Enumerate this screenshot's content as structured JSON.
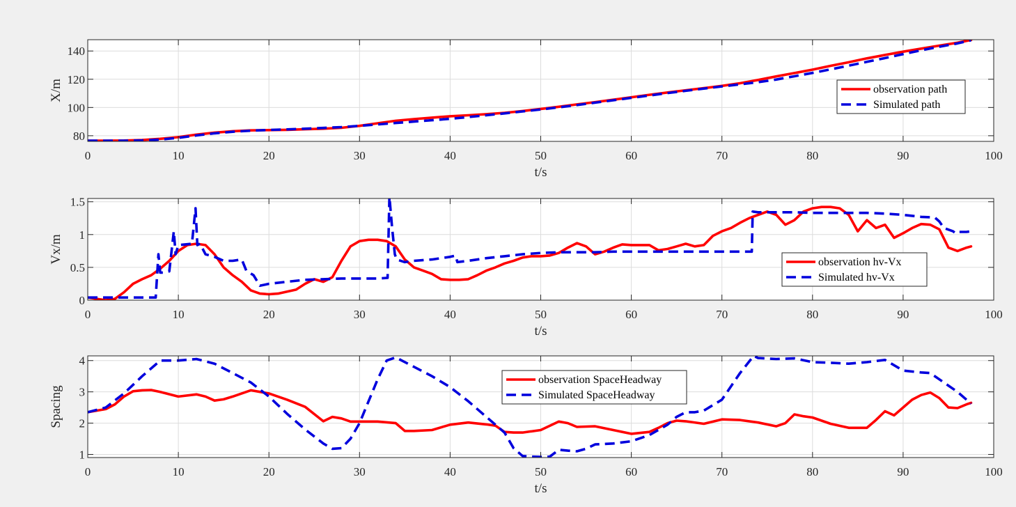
{
  "chart_data": [
    {
      "type": "line",
      "xlabel": "t/s",
      "ylabel": "X/m",
      "xlim": [
        0,
        100
      ],
      "ylim": [
        76,
        148
      ],
      "xticks": [
        0,
        10,
        20,
        30,
        40,
        50,
        60,
        70,
        80,
        90,
        100
      ],
      "yticks": [
        80,
        100,
        120,
        140
      ],
      "grid": true,
      "legend_position": "right",
      "series": [
        {
          "name": "observation path",
          "color": "#ff0000",
          "style": "solid",
          "x": [
            0,
            2,
            4,
            6,
            8,
            10,
            12,
            14,
            16,
            18,
            20,
            22,
            24,
            26,
            28,
            30,
            32,
            34,
            36,
            38,
            40,
            42,
            44,
            46,
            48,
            50,
            52,
            54,
            56,
            58,
            60,
            62,
            64,
            66,
            68,
            70,
            72,
            74,
            76,
            78,
            80,
            82,
            84,
            86,
            88,
            90,
            92,
            94,
            96,
            97.5
          ],
          "y": [
            76.5,
            76.5,
            76.6,
            77.0,
            77.8,
            79.0,
            80.8,
            82.2,
            83.2,
            83.8,
            84.0,
            84.2,
            84.6,
            85.0,
            85.6,
            87.0,
            88.8,
            90.6,
            91.8,
            92.8,
            93.8,
            94.5,
            95.3,
            96.2,
            97.5,
            99.0,
            100.5,
            102.2,
            103.8,
            105.5,
            107.2,
            109.0,
            110.6,
            112.2,
            113.7,
            115.3,
            117.2,
            119.5,
            122.0,
            124.4,
            126.8,
            129.5,
            132.0,
            134.8,
            137.2,
            139.5,
            141.7,
            143.8,
            145.9,
            147.8
          ]
        },
        {
          "name": "Simulated path",
          "color": "#0000dd",
          "style": "dashed",
          "x": [
            0,
            2,
            4,
            6,
            8,
            10,
            12,
            14,
            16,
            18,
            20,
            22,
            24,
            26,
            28,
            30,
            32,
            34,
            36,
            38,
            40,
            42,
            44,
            46,
            48,
            50,
            52,
            54,
            56,
            58,
            60,
            62,
            64,
            66,
            68,
            70,
            72,
            74,
            76,
            78,
            80,
            82,
            84,
            86,
            88,
            90,
            92,
            94,
            96,
            97.5
          ],
          "y": [
            76.5,
            76.5,
            76.5,
            76.7,
            77.3,
            78.5,
            80.2,
            81.7,
            82.8,
            83.6,
            84.1,
            84.5,
            85.0,
            85.5,
            86.1,
            87.0,
            88.0,
            89.0,
            90.0,
            91.0,
            92.0,
            93.2,
            94.5,
            95.8,
            97.2,
            98.6,
            100.1,
            101.7,
            103.4,
            105.1,
            106.8,
            108.5,
            110.2,
            111.8,
            113.4,
            114.9,
            116.4,
            117.9,
            119.8,
            122.1,
            124.5,
            127.0,
            129.6,
            132.3,
            135.0,
            137.8,
            140.5,
            143.0,
            145.4,
            147.6
          ]
        }
      ]
    },
    {
      "type": "line",
      "xlabel": "t/s",
      "ylabel": "Vx/m",
      "xlim": [
        0,
        100
      ],
      "ylim": [
        0,
        1.55
      ],
      "xticks": [
        0,
        10,
        20,
        30,
        40,
        50,
        60,
        70,
        80,
        90,
        100
      ],
      "yticks": [
        0,
        0.5,
        1,
        1.5
      ],
      "grid": true,
      "legend_position": "right",
      "series": [
        {
          "name": "observation hv-Vx",
          "color": "#ff0000",
          "style": "solid",
          "x": [
            0,
            1,
            2,
            3,
            4,
            5,
            6,
            7,
            8,
            9,
            10,
            11,
            12,
            13,
            14,
            15,
            16,
            17,
            18,
            19,
            20,
            21,
            22,
            23,
            24,
            25,
            26,
            27,
            28,
            29,
            30,
            31,
            32,
            33,
            34,
            35,
            36,
            37,
            38,
            39,
            40,
            41,
            42,
            43,
            44,
            45,
            46,
            47,
            48,
            49,
            50,
            51,
            52,
            53,
            54,
            55,
            56,
            57,
            58,
            59,
            60,
            61,
            62,
            63,
            64,
            65,
            66,
            67,
            68,
            69,
            70,
            71,
            72,
            73,
            74,
            75,
            76,
            77,
            78,
            79,
            80,
            81,
            82,
            83,
            84,
            85,
            86,
            87,
            88,
            89,
            90,
            91,
            92,
            93,
            94,
            95,
            96,
            97,
            97.5
          ],
          "y": [
            0.04,
            0.02,
            0.0,
            0.02,
            0.12,
            0.25,
            0.32,
            0.38,
            0.48,
            0.6,
            0.75,
            0.84,
            0.86,
            0.84,
            0.7,
            0.5,
            0.38,
            0.28,
            0.15,
            0.1,
            0.09,
            0.1,
            0.13,
            0.16,
            0.25,
            0.32,
            0.28,
            0.35,
            0.6,
            0.82,
            0.9,
            0.92,
            0.92,
            0.9,
            0.82,
            0.62,
            0.5,
            0.45,
            0.4,
            0.32,
            0.31,
            0.31,
            0.32,
            0.38,
            0.45,
            0.5,
            0.56,
            0.6,
            0.65,
            0.67,
            0.67,
            0.68,
            0.72,
            0.8,
            0.87,
            0.82,
            0.7,
            0.74,
            0.8,
            0.85,
            0.84,
            0.84,
            0.84,
            0.76,
            0.78,
            0.82,
            0.86,
            0.82,
            0.84,
            0.98,
            1.05,
            1.1,
            1.18,
            1.25,
            1.3,
            1.35,
            1.3,
            1.15,
            1.22,
            1.35,
            1.4,
            1.42,
            1.42,
            1.4,
            1.3,
            1.05,
            1.22,
            1.1,
            1.15,
            0.95,
            1.02,
            1.1,
            1.16,
            1.15,
            1.08,
            0.8,
            0.75,
            0.8,
            0.82
          ]
        },
        {
          "name": "Simulated hv-Vx",
          "color": "#0000dd",
          "style": "dashed",
          "x": [
            0,
            2,
            4,
            6,
            7.5,
            7.8,
            8.0,
            8.3,
            9.0,
            9.5,
            9.7,
            10.0,
            11.5,
            11.9,
            12.1,
            12.4,
            13,
            14,
            15,
            16,
            17,
            17.5,
            18.3,
            19,
            20,
            22,
            24,
            26,
            28,
            30,
            32,
            33.1,
            33.3,
            33.6,
            33.9,
            34.1,
            35,
            36,
            38,
            40,
            40.6,
            40.8,
            42,
            44,
            46,
            48,
            50,
            52,
            54,
            56,
            58,
            60,
            62,
            64,
            66,
            68,
            70,
            72,
            73.3,
            73.4,
            74,
            76,
            78,
            80,
            82,
            84,
            86,
            88,
            90,
            92,
            93.5,
            94,
            94.5,
            95.5,
            95.8,
            96,
            97,
            97.5
          ],
          "y": [
            0.04,
            0.04,
            0.04,
            0.04,
            0.04,
            0.7,
            0.42,
            0.42,
            0.44,
            1.05,
            0.7,
            0.84,
            0.86,
            1.4,
            0.84,
            0.86,
            0.7,
            0.66,
            0.6,
            0.6,
            0.62,
            0.45,
            0.38,
            0.22,
            0.25,
            0.28,
            0.31,
            0.32,
            0.33,
            0.33,
            0.33,
            0.34,
            1.58,
            1.1,
            0.7,
            0.62,
            0.58,
            0.6,
            0.62,
            0.66,
            0.68,
            0.58,
            0.6,
            0.64,
            0.67,
            0.7,
            0.72,
            0.73,
            0.73,
            0.73,
            0.74,
            0.74,
            0.74,
            0.74,
            0.74,
            0.74,
            0.74,
            0.74,
            0.74,
            1.35,
            1.34,
            1.34,
            1.34,
            1.33,
            1.33,
            1.33,
            1.33,
            1.32,
            1.3,
            1.27,
            1.26,
            1.2,
            1.1,
            1.05,
            1.02,
            1.04,
            1.04,
            1.05
          ]
        }
      ]
    },
    {
      "type": "line",
      "xlabel": "t/s",
      "ylabel": "Spacing",
      "xlim": [
        0,
        100
      ],
      "ylim": [
        0.9,
        4.15
      ],
      "xticks": [
        0,
        10,
        20,
        30,
        40,
        50,
        60,
        70,
        80,
        90,
        100
      ],
      "yticks": [
        1,
        2,
        3,
        4
      ],
      "grid": true,
      "legend_position": "top-center",
      "series": [
        {
          "name": "observation SpaceHeadway",
          "color": "#ff0000",
          "style": "solid",
          "x": [
            0,
            2,
            3,
            4,
            5,
            6,
            7,
            8,
            10,
            12,
            13,
            14,
            15,
            16,
            17,
            18,
            19,
            20,
            22,
            24,
            26,
            27,
            28,
            29,
            30,
            32,
            34,
            35,
            36,
            38,
            40,
            42,
            44,
            45,
            46,
            47,
            48,
            50,
            52,
            53,
            54,
            56,
            58,
            60,
            62,
            63,
            64,
            65,
            66,
            68,
            70,
            72,
            74,
            76,
            77,
            78,
            79,
            80,
            82,
            84,
            86,
            87,
            88,
            89,
            90,
            91,
            92,
            93,
            94,
            95,
            96,
            97,
            97.5
          ],
          "y": [
            2.35,
            2.45,
            2.6,
            2.85,
            3.02,
            3.05,
            3.06,
            3.0,
            2.85,
            2.92,
            2.85,
            2.72,
            2.76,
            2.85,
            2.95,
            3.05,
            3.0,
            2.95,
            2.75,
            2.52,
            2.06,
            2.2,
            2.15,
            2.05,
            2.05,
            2.05,
            2.0,
            1.75,
            1.75,
            1.78,
            1.95,
            2.02,
            1.96,
            1.92,
            1.72,
            1.7,
            1.7,
            1.78,
            2.05,
            2.0,
            1.88,
            1.9,
            1.78,
            1.66,
            1.72,
            1.85,
            2.0,
            2.08,
            2.06,
            1.98,
            2.12,
            2.1,
            2.02,
            1.9,
            2.0,
            2.28,
            2.22,
            2.18,
            1.98,
            1.85,
            1.85,
            2.1,
            2.38,
            2.25,
            2.5,
            2.75,
            2.9,
            2.98,
            2.8,
            2.5,
            2.48,
            2.6,
            2.65
          ]
        },
        {
          "name": "Simulated SpaceHeadway",
          "color": "#0000dd",
          "style": "dashed",
          "x": [
            0,
            2,
            4,
            6,
            8,
            10,
            12,
            14,
            16,
            18,
            20,
            22,
            24,
            26,
            27,
            28,
            29,
            30,
            31,
            32,
            33,
            34,
            36,
            38,
            40,
            42,
            44,
            46,
            47,
            48,
            49,
            50,
            51,
            52,
            53,
            54,
            55,
            56,
            58,
            60,
            62,
            64,
            65,
            66,
            67,
            68,
            70,
            72,
            73.5,
            74,
            76,
            78,
            80,
            82,
            84,
            86,
            88,
            90,
            92,
            93,
            94,
            96,
            97.5
          ],
          "y": [
            2.35,
            2.5,
            2.95,
            3.5,
            4.0,
            4.0,
            4.05,
            3.9,
            3.6,
            3.3,
            2.85,
            2.3,
            1.8,
            1.35,
            1.18,
            1.2,
            1.5,
            2.0,
            2.7,
            3.4,
            4.0,
            4.1,
            3.8,
            3.5,
            3.15,
            2.7,
            2.2,
            1.7,
            1.2,
            0.95,
            0.93,
            0.92,
            0.93,
            1.15,
            1.12,
            1.1,
            1.18,
            1.32,
            1.35,
            1.42,
            1.62,
            1.95,
            2.2,
            2.35,
            2.35,
            2.4,
            2.75,
            3.6,
            4.15,
            4.08,
            4.05,
            4.07,
            3.95,
            3.93,
            3.9,
            3.95,
            4.02,
            3.68,
            3.62,
            3.6,
            3.4,
            3.0,
            2.62
          ]
        }
      ]
    }
  ]
}
